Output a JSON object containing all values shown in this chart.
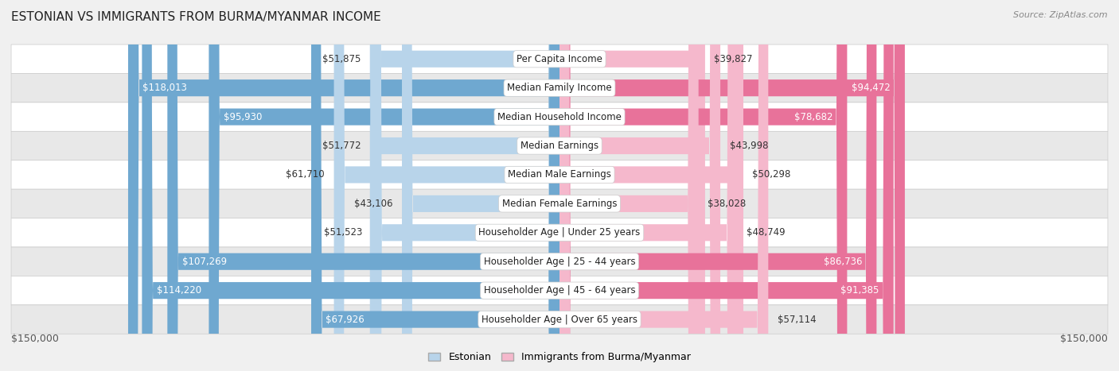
{
  "title": "ESTONIAN VS IMMIGRANTS FROM BURMA/MYANMAR INCOME",
  "source": "Source: ZipAtlas.com",
  "categories": [
    "Per Capita Income",
    "Median Family Income",
    "Median Household Income",
    "Median Earnings",
    "Median Male Earnings",
    "Median Female Earnings",
    "Householder Age | Under 25 years",
    "Householder Age | 25 - 44 years",
    "Householder Age | 45 - 64 years",
    "Householder Age | Over 65 years"
  ],
  "estonian_values": [
    51875,
    118013,
    95930,
    51772,
    61710,
    43106,
    51523,
    107269,
    114220,
    67926
  ],
  "burma_values": [
    39827,
    94472,
    78682,
    43998,
    50298,
    38028,
    48749,
    86736,
    91385,
    57114
  ],
  "estonian_labels": [
    "$51,875",
    "$118,013",
    "$95,930",
    "$51,772",
    "$61,710",
    "$43,106",
    "$51,523",
    "$107,269",
    "$114,220",
    "$67,926"
  ],
  "burma_labels": [
    "$39,827",
    "$94,472",
    "$78,682",
    "$43,998",
    "$50,298",
    "$38,028",
    "$48,749",
    "$86,736",
    "$91,385",
    "$57,114"
  ],
  "estonian_color_light": "#b8d4ea",
  "estonian_color_dark": "#6fa8d0",
  "burma_color_light": "#f5b8cc",
  "burma_color_dark": "#e8729a",
  "max_value": 150000,
  "background_color": "#f0f0f0",
  "row_colors": [
    "#ffffff",
    "#e8e8e8"
  ],
  "legend_estonian": "Estonian",
  "legend_burma": "Immigrants from Burma/Myanmar",
  "xlabel_left": "$150,000",
  "xlabel_right": "$150,000",
  "title_fontsize": 11,
  "label_fontsize": 8.5,
  "category_fontsize": 8.5,
  "white_label_threshold": 65000,
  "white_label_threshold_burma": 60000
}
